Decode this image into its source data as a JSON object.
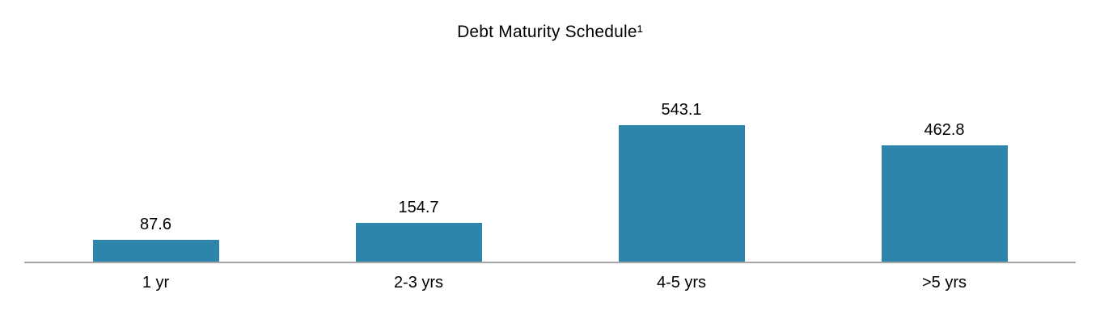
{
  "title": "Debt Maturity Schedule¹",
  "colors": {
    "bar": "#2e85ac",
    "axis": "#a6a6a6",
    "text": "#000000",
    "background": "#ffffff"
  },
  "chart_data": {
    "type": "bar",
    "title": "Debt Maturity Schedule¹",
    "categories": [
      "1 yr",
      "2-3 yrs",
      "4-5 yrs",
      ">5 yrs"
    ],
    "values": [
      87.6,
      154.7,
      543.1,
      462.8
    ],
    "value_labels": [
      "87.6",
      "154.7",
      "543.1",
      "462.8"
    ],
    "xlabel": "",
    "ylabel": "",
    "ylim": [
      0,
      600
    ],
    "grid": false,
    "legend": "none",
    "orientation": "vertical",
    "baseline": 0
  }
}
